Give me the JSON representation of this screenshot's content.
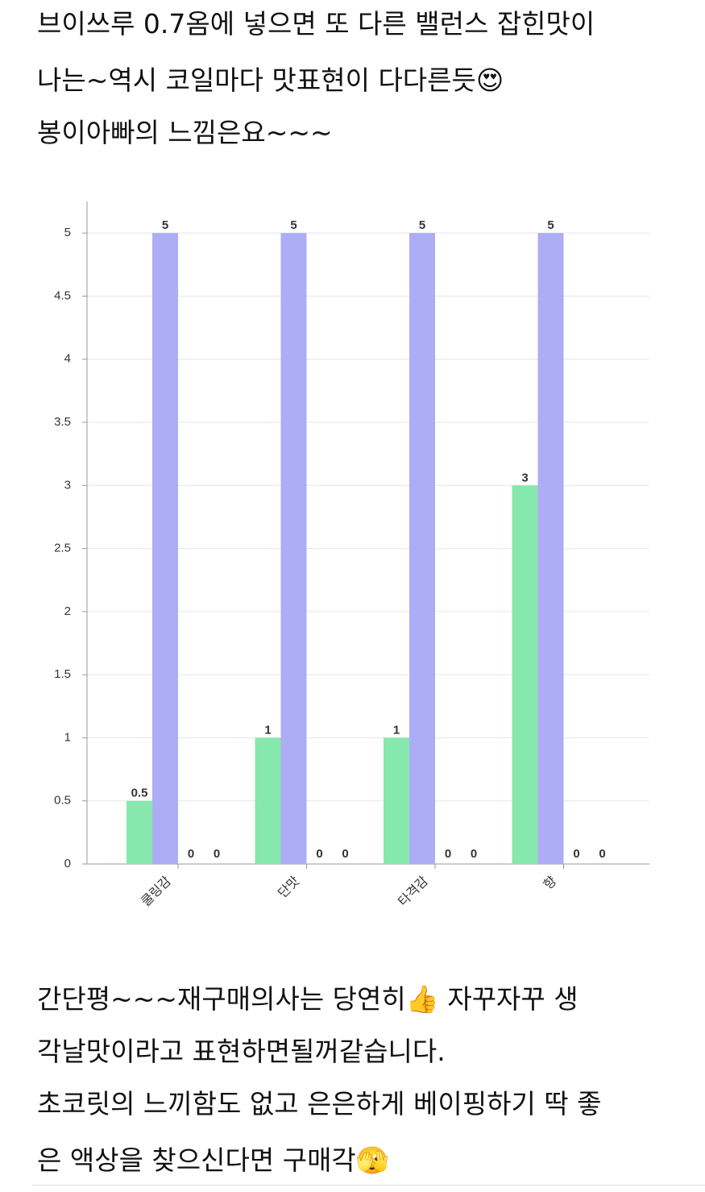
{
  "text_top": [
    "브이쓰루 0.7옴에 넣으면 또 다른 밸런스 잡힌맛이",
    "나는~역시 코일마다 맛표현이 다다른듯😍",
    "봉이아빠의 느낌은요~~~"
  ],
  "chart_data": {
    "type": "bar",
    "categories": [
      "쿨링감",
      "단맛",
      "타격감",
      "향"
    ],
    "series": [
      {
        "color": "#86e8ad",
        "values": [
          0.5,
          1,
          1,
          3
        ]
      },
      {
        "color": "#adadf5",
        "values": [
          5,
          5,
          5,
          5
        ]
      },
      {
        "values": [
          0,
          0,
          0,
          0
        ]
      },
      {
        "values": [
          0,
          0,
          0,
          0
        ]
      }
    ],
    "ylim": [
      0,
      5.25
    ],
    "yticks": [
      0,
      0.5,
      1,
      1.5,
      2,
      2.5,
      3,
      3.5,
      4,
      4.5,
      5
    ],
    "grid": true
  },
  "text_bottom": [
    "간단평~~~재구매의사는 당연히👍 자꾸자꾸 생",
    "각날맛이라고 표현하면될꺼같습니다.",
    "초코릿의 느끼함도 없고 은은하게 베이핑하기 딱 좋",
    "은 액상을 찾으신다면 구매각🫣"
  ]
}
